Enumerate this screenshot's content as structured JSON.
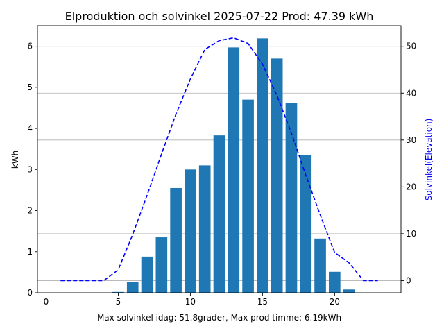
{
  "chart_data": {
    "type": "bar",
    "title": "Elproduktion och solvinkel 2025-07-22 Prod: 47.39 kWh",
    "xlabel": "Max solvinkel idag: 51.8grader, Max prod timme: 6.19kWh",
    "ylabel": "kWh",
    "y2label": "Solvinkel(Elevation)",
    "xlim": [
      -0.6,
      24.6
    ],
    "ylim": [
      0,
      6.5
    ],
    "y2lim": [
      -2.6,
      54.4
    ],
    "x_ticks": [
      0,
      5,
      10,
      15,
      20
    ],
    "y_ticks": [
      0,
      1,
      2,
      3,
      4,
      5,
      6
    ],
    "y2_ticks": [
      0,
      10,
      20,
      30,
      40,
      50
    ],
    "grid": "horizontal on secondary axis",
    "bar_color": "#1f77b4",
    "line_color": "#0000ff",
    "series": [
      {
        "type": "bar",
        "x": [
          5,
          6,
          7,
          8,
          9,
          10,
          11,
          12,
          13,
          14,
          15,
          16,
          17,
          18,
          19,
          20,
          21
        ],
        "values": [
          0.02,
          0.27,
          0.88,
          1.35,
          2.55,
          3.0,
          3.1,
          3.83,
          5.97,
          4.7,
          6.19,
          5.7,
          4.62,
          3.35,
          1.32,
          0.51,
          0.08
        ]
      },
      {
        "type": "line",
        "axis": "right",
        "style": "dashed",
        "x": [
          1,
          2,
          3,
          4,
          5,
          6,
          7,
          8,
          9,
          10,
          11,
          12,
          13,
          14,
          15,
          16,
          17,
          18,
          19,
          20,
          21,
          22,
          23
        ],
        "values": [
          0,
          0,
          0,
          0,
          2.3,
          9.8,
          18.2,
          27.0,
          35.5,
          43.0,
          49.3,
          51.2,
          51.8,
          50.6,
          46.2,
          39.5,
          31.5,
          22.5,
          14.0,
          6.0,
          3.8,
          0,
          0
        ]
      }
    ]
  }
}
